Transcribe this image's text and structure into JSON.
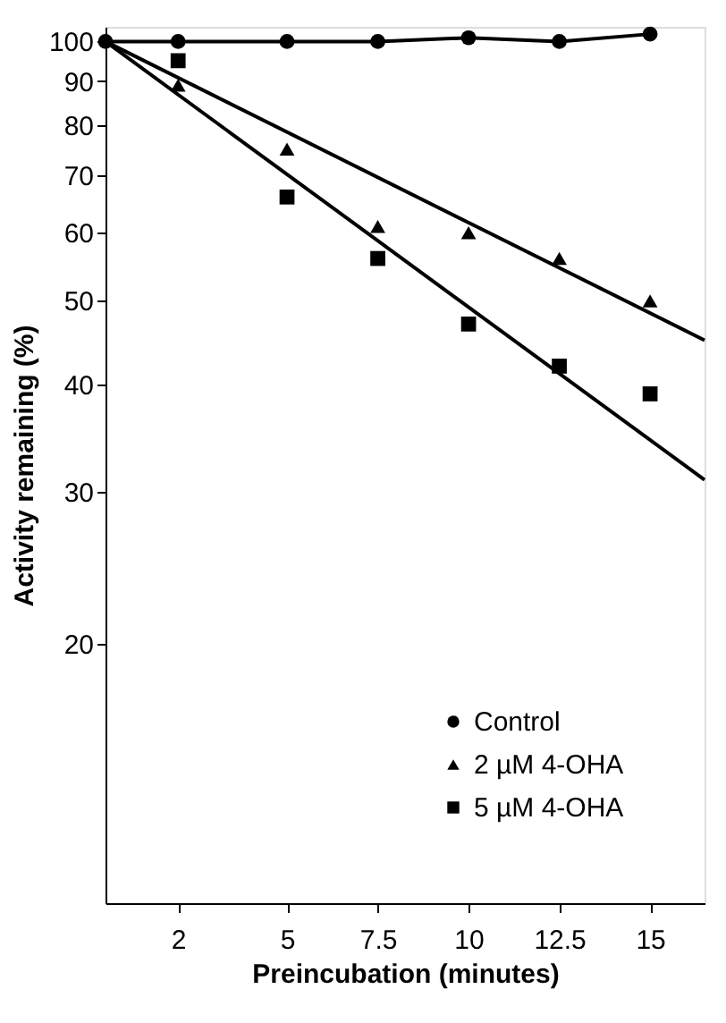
{
  "chart_data": {
    "type": "scatter",
    "xlabel": "Preincubation (minutes)",
    "ylabel": "Activity remaining (%)",
    "xlim": [
      0,
      16.5
    ],
    "xticks": [
      2,
      5,
      7.5,
      10,
      12.5,
      15
    ],
    "ylim": [
      10,
      104
    ],
    "yticks": [
      20,
      30,
      40,
      50,
      60,
      70,
      80,
      90,
      100
    ],
    "log": "y",
    "grid": false,
    "legend": "bottom right",
    "series": [
      {
        "name": "Control",
        "type": "line",
        "marker": "circle",
        "color": "#000000",
        "x": [
          0,
          2,
          5,
          7.5,
          10,
          12.5,
          15
        ],
        "values": [
          100,
          100,
          100,
          100,
          101,
          100,
          102
        ]
      },
      {
        "name": "2 µM 4-OHA",
        "marker": "triangle",
        "color": "#000000",
        "x": [
          2,
          5,
          7.5,
          10,
          12.5,
          15
        ],
        "values": [
          89,
          75,
          61,
          60,
          56,
          50
        ]
      },
      {
        "name": "5 µM 4-OHA",
        "marker": "square",
        "color": "#000000",
        "x": [
          2,
          5,
          7.5,
          10,
          12.5,
          15
        ],
        "values": [
          95,
          66,
          56,
          47,
          42,
          39
        ]
      },
      {
        "type": "line",
        "marker": "none",
        "color": "#000000",
        "x": [
          0,
          16.5
        ],
        "values": [
          100,
          45
        ]
      },
      {
        "type": "line",
        "marker": "none",
        "color": "#000000",
        "x": [
          0,
          16.5
        ],
        "values": [
          100,
          31
        ]
      }
    ]
  }
}
